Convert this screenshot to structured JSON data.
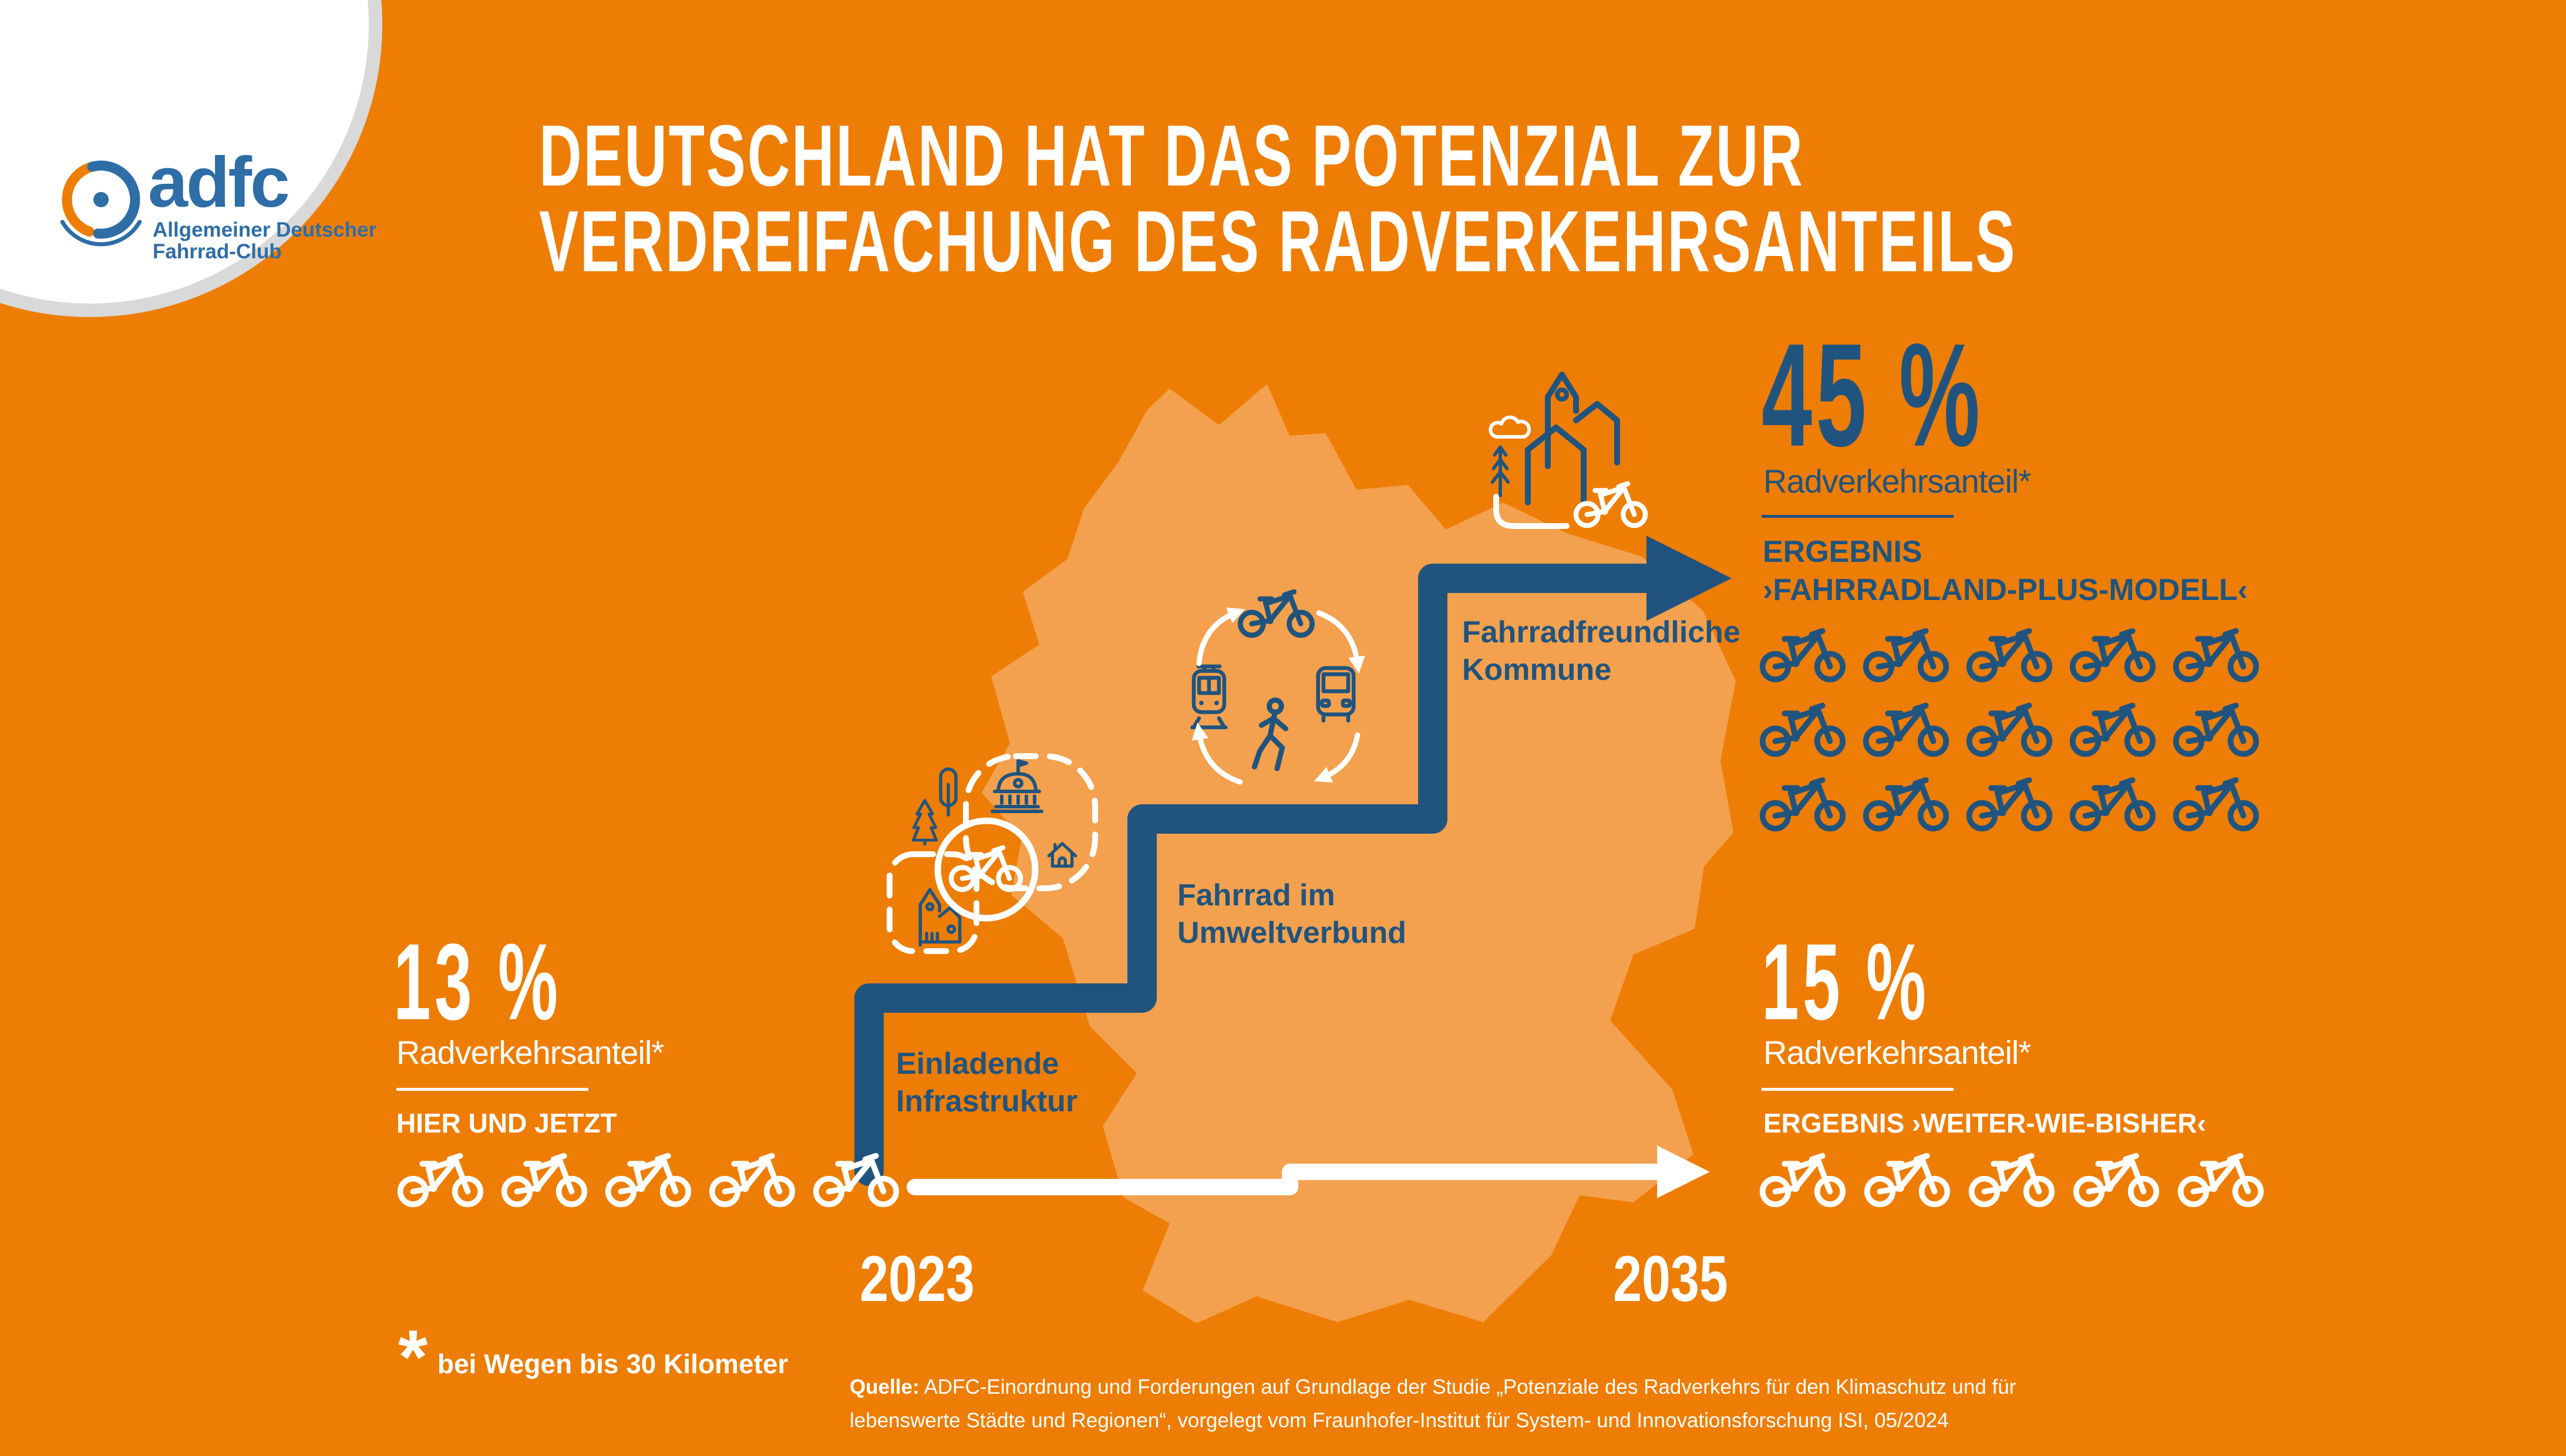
{
  "colors": {
    "background": "#EE7D05",
    "map_light": "#F3A14E",
    "dark_blue": "#20547E",
    "white": "#FFFFFF",
    "logo_blue": "#2E6DA6",
    "ring_gray": "#D9D9D9"
  },
  "logo": {
    "name": "adfc",
    "sub1": "Allgemeiner Deutscher",
    "sub2": "Fahrrad-Club",
    "icon": "adfc-wheel-icon"
  },
  "title": {
    "line1": "DEUTSCHLAND HAT DAS POTENZIAL ZUR",
    "line2": "VERDREIFACHUNG DES RADVERKEHRSANTEILS"
  },
  "steps": [
    {
      "line1": "Einladende",
      "line2": "Infrastruktur",
      "icons": [
        "pine-tree-icon",
        "poplar-tree-icon",
        "town-hall-icon",
        "house-icon",
        "church-icon",
        "bicycle-circle-icon"
      ]
    },
    {
      "line1": "Fahrrad im",
      "line2": "Umweltverbund",
      "icons": [
        "bicycle-icon",
        "tram-icon",
        "bus-icon",
        "pedestrian-icon",
        "cycle-arrows-icon"
      ]
    },
    {
      "line1": "Fahrradfreundliche",
      "line2": "Kommune",
      "icons": [
        "cloud-icon",
        "fir-growth-icon",
        "town-buildings-icon",
        "bicycle-icon",
        "path-icon"
      ]
    }
  ],
  "timeline": {
    "start_year": "2023",
    "end_year": "2035"
  },
  "stats": {
    "current": {
      "value": "13 %",
      "label": "Radverkehrsanteil*",
      "sublabel": "HIER UND JETZT",
      "bikes": 5
    },
    "plus": {
      "value": "45 %",
      "label": "Radverkehrsanteil*",
      "sublabel_line1": "ERGEBNIS",
      "sublabel_line2": "›FAHRRADLAND-PLUS-MODELL‹",
      "bikes": 15
    },
    "bau": {
      "value": "15 %",
      "label": "Radverkehrsanteil*",
      "sublabel": "ERGEBNIS ›WEITER-WIE-BISHER‹",
      "bikes": 5
    }
  },
  "footnote": {
    "asterisk": "*",
    "text": "bei Wegen bis 30 Kilometer"
  },
  "source": {
    "label": "Quelle:",
    "line1": "ADFC-Einordnung und Forderungen auf Grundlage der Studie „Potenziale des Radverkehrs für den Klimaschutz und für",
    "line2": "lebenswerte Städte und Regionen“, vorgelegt vom Fraunhofer-Institut für System- und Innovationsforschung ISI, 05/2024"
  },
  "chart_data": {
    "type": "pictogram",
    "title": "Deutschland hat das Potenzial zur Verdreifachung des Radverkehrsanteils",
    "unit": "% Radverkehrsanteil (bei Wegen bis 30 Kilometer)",
    "x": [
      "2023",
      "2035"
    ],
    "series": [
      {
        "name": "Hier und jetzt",
        "year": "2023",
        "value_percent": 13,
        "bike_icons": 5,
        "color": "white"
      },
      {
        "name": "Ergebnis ›Weiter-wie-bisher‹",
        "year": "2035",
        "value_percent": 15,
        "bike_icons": 5,
        "color": "white"
      },
      {
        "name": "Ergebnis ›Fahrradland-Plus-Modell‹",
        "year": "2035",
        "value_percent": 45,
        "bike_icons": 15,
        "color": "dark_blue"
      }
    ],
    "steps": [
      "Einladende Infrastruktur",
      "Fahrrad im Umweltverbund",
      "Fahrradfreundliche Kommune"
    ],
    "annotations": [
      "Staircase arrow from 13 % (2023) up to 45 % (2035)",
      "Flat timeline arrow from 2023 to 2035 for 15 % scenario"
    ]
  }
}
